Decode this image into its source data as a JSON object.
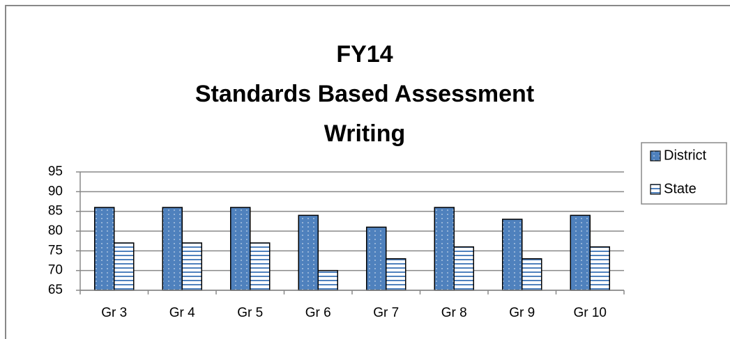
{
  "chart_data": {
    "type": "bar",
    "title": [
      "FY14",
      "Standards Based Assessment",
      "Writing"
    ],
    "categories": [
      "Gr 3",
      "Gr 4",
      "Gr 5",
      "Gr 6",
      "Gr 7",
      "Gr 8",
      "Gr 9",
      "Gr 10"
    ],
    "series": [
      {
        "name": "District",
        "color": "#4f81bd",
        "pattern": "dots",
        "values": [
          86,
          86,
          86,
          84,
          81,
          86,
          83,
          84
        ]
      },
      {
        "name": "State",
        "color": "#4f81bd",
        "pattern": "horizontal-lines",
        "values": [
          77,
          77,
          77,
          70,
          73,
          76,
          73,
          76
        ]
      }
    ],
    "ylim": [
      65,
      95
    ],
    "yticks": [
      65,
      70,
      75,
      80,
      85,
      90,
      95
    ],
    "grid": true,
    "legend": "right"
  }
}
